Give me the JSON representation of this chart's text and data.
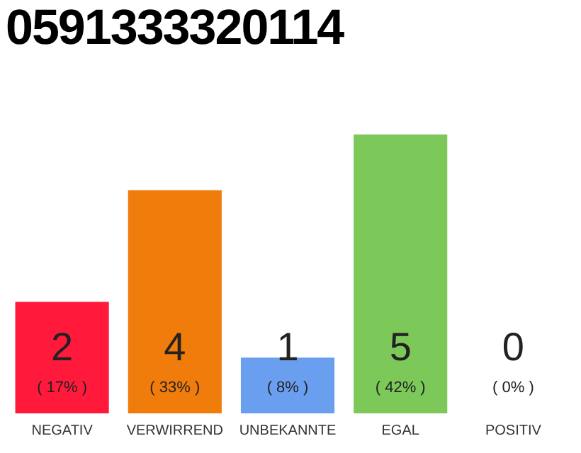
{
  "chart_data": {
    "type": "bar",
    "title": "0591333320114",
    "categories": [
      "NEGATIV",
      "VERWIRREND",
      "UNBEKANNTE",
      "EGAL",
      "POSITIV"
    ],
    "values": [
      2,
      4,
      1,
      5,
      0
    ],
    "colors": [
      "#ff1a3c",
      "#f07c0c",
      "#6a9ff0",
      "#7cc95a",
      "#bdbdbd"
    ],
    "ylim": [
      0,
      5
    ],
    "tick_labels": "x",
    "grid": false,
    "legend": false,
    "data_labels": true,
    "annotations": [
      "( 17% )",
      "( 33% )",
      "( 8% )",
      "( 42% )",
      "( 0% )"
    ]
  }
}
